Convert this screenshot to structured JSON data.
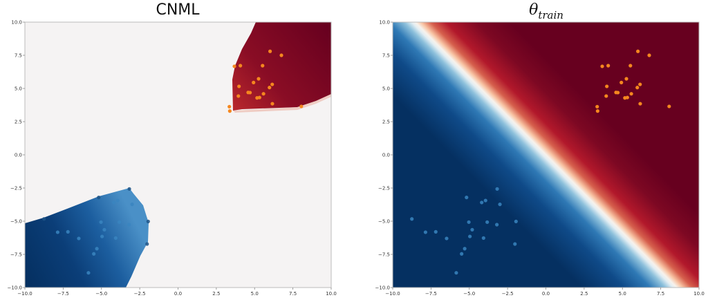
{
  "chart_data": [
    {
      "type": "heatmap",
      "title": "CNML",
      "xlabel": "",
      "ylabel": "",
      "xlim": [
        -10,
        10
      ],
      "ylim": [
        -10,
        10
      ],
      "xticks": [
        "-10.0",
        "-7.5",
        "-5.0",
        "-2.5",
        "0.0",
        "2.5",
        "5.0",
        "7.5",
        "10.0"
      ],
      "yticks": [
        "10.0",
        "7.5",
        "5.0",
        "2.5",
        "0.0",
        "-2.5",
        "-5.0",
        "-7.5",
        "-10.0"
      ],
      "grid": false,
      "colormap": "RdBu_r (white = uncertain, blue = class 0, red = class 1)",
      "background_color": "#f5f3f3",
      "regions": [
        {
          "name": "class-1-confident",
          "color": "#67001f",
          "description": "red region top-right, bounded left near x≈3.4 and below near y≈3.3"
        },
        {
          "name": "class-0-confident",
          "color": "#053061",
          "description": "blue region bottom-left, bounded above near y≈-2.5 and right near x≈-2.0"
        }
      ],
      "series": [
        {
          "name": "class 0",
          "color": "#1f77b4",
          "type": "scatter",
          "points": [
            [
              -3.18,
              -2.57
            ],
            [
              -5.18,
              -3.21
            ],
            [
              -4.19,
              -3.59
            ],
            [
              -3.94,
              -3.44
            ],
            [
              -3.0,
              -3.73
            ],
            [
              -8.75,
              -4.83
            ],
            [
              -5.03,
              -5.07
            ],
            [
              -3.83,
              -5.07
            ],
            [
              -3.2,
              -5.26
            ],
            [
              -1.95,
              -5.02
            ],
            [
              -7.86,
              -5.83
            ],
            [
              -7.19,
              -5.8
            ],
            [
              -4.81,
              -5.64
            ],
            [
              -4.96,
              -6.15
            ],
            [
              -6.48,
              -6.3
            ],
            [
              -4.07,
              -6.27
            ],
            [
              -2.02,
              -6.72
            ],
            [
              -5.3,
              -7.07
            ],
            [
              -5.5,
              -7.46
            ],
            [
              -5.85,
              -8.89
            ]
          ]
        },
        {
          "name": "class 1",
          "color": "#ff7f0e",
          "type": "scatter",
          "points": [
            [
              6.01,
              7.8
            ],
            [
              6.75,
              7.5
            ],
            [
              3.68,
              6.67
            ],
            [
              4.07,
              6.72
            ],
            [
              5.52,
              6.72
            ],
            [
              5.26,
              5.73
            ],
            [
              4.93,
              5.45
            ],
            [
              3.98,
              5.16
            ],
            [
              6.15,
              5.31
            ],
            [
              5.97,
              5.07
            ],
            [
              4.58,
              4.7
            ],
            [
              4.7,
              4.69
            ],
            [
              3.94,
              4.43
            ],
            [
              5.58,
              4.6
            ],
            [
              5.16,
              4.29
            ],
            [
              5.32,
              4.32
            ],
            [
              6.16,
              3.85
            ],
            [
              3.35,
              3.63
            ],
            [
              3.38,
              3.3
            ],
            [
              8.05,
              3.65
            ]
          ]
        }
      ]
    },
    {
      "type": "heatmap",
      "title": "θ̂_train",
      "title_main": "θ",
      "title_sub": "train",
      "xlabel": "",
      "ylabel": "",
      "xlim": [
        -10,
        10
      ],
      "ylim": [
        -10,
        10
      ],
      "xticks": [
        "-10.0",
        "-7.5",
        "-5.0",
        "-2.5",
        "0.0",
        "2.5",
        "5.0",
        "7.5",
        "10.0"
      ],
      "yticks": [
        "10.0",
        "7.5",
        "5.0",
        "2.5",
        "0.0",
        "-2.5",
        "-5.0",
        "-7.5",
        "-10.0"
      ],
      "grid": false,
      "colormap": "RdBu_r",
      "decision_boundary": "y = -x (white band from (-10,10) to (10,-10))",
      "colors": {
        "blue": "#053061",
        "white": "#f7f7f7",
        "red": "#67001f"
      },
      "series": [
        {
          "name": "class 0",
          "color": "#1f77b4",
          "type": "scatter",
          "points": [
            [
              -3.18,
              -2.57
            ],
            [
              -5.18,
              -3.21
            ],
            [
              -4.19,
              -3.59
            ],
            [
              -3.94,
              -3.44
            ],
            [
              -3.0,
              -3.73
            ],
            [
              -8.75,
              -4.83
            ],
            [
              -5.03,
              -5.07
            ],
            [
              -3.83,
              -5.07
            ],
            [
              -3.2,
              -5.26
            ],
            [
              -1.95,
              -5.02
            ],
            [
              -7.86,
              -5.83
            ],
            [
              -7.19,
              -5.8
            ],
            [
              -4.81,
              -5.64
            ],
            [
              -4.96,
              -6.15
            ],
            [
              -6.48,
              -6.3
            ],
            [
              -4.07,
              -6.27
            ],
            [
              -2.02,
              -6.72
            ],
            [
              -5.3,
              -7.07
            ],
            [
              -5.5,
              -7.46
            ],
            [
              -5.85,
              -8.89
            ]
          ]
        },
        {
          "name": "class 1",
          "color": "#ff7f0e",
          "type": "scatter",
          "points": [
            [
              6.01,
              7.8
            ],
            [
              6.75,
              7.5
            ],
            [
              3.68,
              6.67
            ],
            [
              4.07,
              6.72
            ],
            [
              5.52,
              6.72
            ],
            [
              5.26,
              5.73
            ],
            [
              4.93,
              5.45
            ],
            [
              3.98,
              5.16
            ],
            [
              6.15,
              5.31
            ],
            [
              5.97,
              5.07
            ],
            [
              4.58,
              4.7
            ],
            [
              4.7,
              4.69
            ],
            [
              3.94,
              4.43
            ],
            [
              5.58,
              4.6
            ],
            [
              5.16,
              4.29
            ],
            [
              5.32,
              4.32
            ],
            [
              6.16,
              3.85
            ],
            [
              3.35,
              3.63
            ],
            [
              3.38,
              3.3
            ],
            [
              8.05,
              3.65
            ]
          ]
        }
      ]
    }
  ]
}
